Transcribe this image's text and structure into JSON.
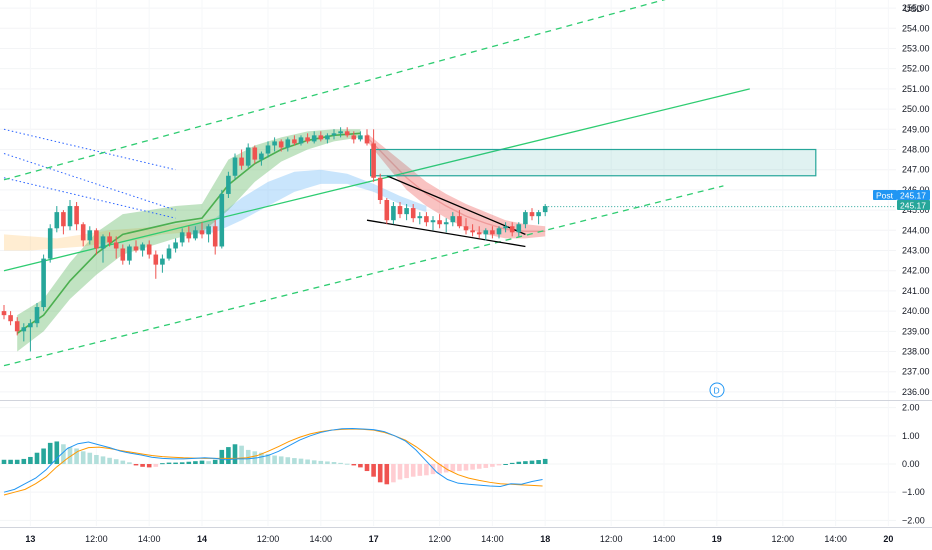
{
  "currency_label": "USD",
  "chart_data": [
    {
      "type": "candlestick",
      "title": "",
      "x_ticks": [
        "13",
        "12:00",
        "14:00",
        "14",
        "12:00",
        "14:00",
        "17",
        "12:00",
        "14:00",
        "18",
        "12:00",
        "14:00",
        "19",
        "12:00",
        "14:00",
        "20"
      ],
      "y_ticks": [
        "236.00",
        "237.00",
        "238.00",
        "239.00",
        "240.00",
        "241.00",
        "242.00",
        "243.00",
        "244.00",
        "245.00",
        "246.00",
        "247.00",
        "248.00",
        "249.00",
        "250.00",
        "251.00",
        "252.00",
        "253.00",
        "254.00",
        "255.00"
      ],
      "ylim": [
        235.6,
        255.4
      ],
      "last_price": 245.17,
      "last_price_label": "245.17",
      "post_price_label": "245.17",
      "post_label": "Post",
      "marker_label": "D",
      "colors": {
        "up": "#26a69a",
        "down": "#ef5350",
        "channel": "#2ecc71",
        "resistance_box": "#26a69a"
      },
      "ohlc": [
        [
          240.0,
          240.3,
          239.6,
          239.8
        ],
        [
          239.8,
          240.0,
          239.3,
          239.5
        ],
        [
          239.5,
          239.7,
          238.8,
          239.0
        ],
        [
          239.0,
          239.4,
          238.5,
          239.2
        ],
        [
          239.2,
          239.6,
          238.0,
          239.4
        ],
        [
          239.4,
          240.4,
          239.2,
          240.2
        ],
        [
          240.2,
          242.8,
          240.0,
          242.6
        ],
        [
          242.6,
          244.3,
          242.4,
          244.1
        ],
        [
          244.1,
          245.2,
          243.9,
          244.9
        ],
        [
          244.9,
          245.0,
          243.8,
          244.2
        ],
        [
          244.2,
          245.5,
          244.0,
          245.2
        ],
        [
          245.2,
          245.4,
          244.0,
          244.3
        ],
        [
          244.3,
          244.4,
          243.2,
          243.5
        ],
        [
          243.5,
          244.2,
          243.3,
          244.0
        ],
        [
          244.0,
          244.1,
          242.8,
          243.1
        ],
        [
          243.1,
          243.8,
          242.4,
          243.7
        ],
        [
          243.7,
          243.9,
          243.2,
          243.4
        ],
        [
          243.4,
          243.7,
          242.6,
          243.1
        ],
        [
          243.1,
          243.3,
          242.3,
          242.5
        ],
        [
          242.5,
          243.3,
          242.3,
          243.2
        ],
        [
          243.2,
          243.5,
          242.9,
          243.0
        ],
        [
          243.0,
          243.4,
          242.7,
          243.3
        ],
        [
          243.3,
          243.5,
          242.6,
          242.8
        ],
        [
          242.8,
          243.0,
          241.6,
          242.3
        ],
        [
          242.3,
          242.8,
          241.9,
          242.6
        ],
        [
          242.6,
          243.3,
          242.5,
          243.1
        ],
        [
          243.1,
          243.6,
          242.9,
          243.4
        ],
        [
          243.4,
          244.1,
          243.2,
          243.9
        ],
        [
          243.9,
          244.2,
          243.4,
          243.6
        ],
        [
          243.6,
          244.2,
          243.5,
          244.0
        ],
        [
          244.0,
          244.4,
          243.6,
          243.8
        ],
        [
          243.8,
          244.3,
          243.4,
          244.2
        ],
        [
          244.2,
          244.5,
          242.8,
          243.2
        ],
        [
          243.2,
          246.0,
          243.1,
          245.8
        ],
        [
          245.8,
          246.9,
          245.6,
          246.7
        ],
        [
          246.7,
          247.8,
          246.5,
          247.6
        ],
        [
          247.6,
          248.0,
          247.0,
          247.2
        ],
        [
          247.2,
          248.3,
          247.1,
          248.1
        ],
        [
          248.1,
          248.2,
          247.3,
          247.5
        ],
        [
          247.5,
          247.9,
          247.2,
          247.8
        ],
        [
          247.8,
          248.4,
          247.6,
          248.2
        ],
        [
          248.2,
          248.6,
          247.9,
          248.4
        ],
        [
          248.4,
          248.5,
          247.9,
          248.1
        ],
        [
          248.1,
          248.6,
          247.9,
          248.5
        ],
        [
          248.5,
          248.7,
          248.2,
          248.3
        ],
        [
          248.3,
          248.7,
          248.2,
          248.6
        ],
        [
          248.6,
          248.8,
          248.3,
          248.4
        ],
        [
          248.4,
          248.9,
          248.3,
          248.7
        ],
        [
          248.7,
          248.9,
          248.4,
          248.5
        ],
        [
          248.5,
          248.8,
          248.3,
          248.7
        ],
        [
          248.7,
          249.0,
          248.5,
          248.8
        ],
        [
          248.8,
          249.1,
          248.6,
          248.9
        ],
        [
          248.9,
          249.1,
          248.6,
          248.7
        ],
        [
          248.7,
          248.9,
          248.3,
          248.5
        ],
        [
          248.5,
          248.9,
          248.4,
          248.7
        ],
        [
          248.7,
          249.0,
          248.2,
          248.3
        ],
        [
          248.3,
          249.0,
          246.4,
          246.6
        ],
        [
          246.6,
          246.8,
          245.3,
          245.5
        ],
        [
          245.5,
          245.6,
          244.3,
          244.5
        ],
        [
          244.5,
          245.4,
          244.3,
          245.2
        ],
        [
          245.2,
          245.4,
          244.6,
          244.8
        ],
        [
          244.8,
          245.3,
          244.5,
          245.1
        ],
        [
          245.1,
          245.3,
          244.4,
          244.6
        ],
        [
          244.6,
          244.9,
          244.3,
          244.7
        ],
        [
          244.7,
          244.9,
          244.2,
          244.4
        ],
        [
          244.4,
          244.7,
          244.0,
          244.5
        ],
        [
          244.5,
          244.8,
          244.1,
          244.3
        ],
        [
          244.3,
          244.6,
          243.9,
          244.4
        ],
        [
          244.4,
          244.9,
          244.2,
          244.7
        ],
        [
          244.7,
          245.0,
          244.1,
          244.2
        ],
        [
          244.2,
          244.6,
          243.8,
          244.0
        ],
        [
          244.0,
          244.3,
          243.7,
          243.9
        ],
        [
          243.9,
          244.2,
          243.6,
          243.8
        ],
        [
          243.8,
          244.1,
          243.5,
          244.0
        ],
        [
          244.0,
          244.2,
          243.6,
          243.8
        ],
        [
          243.8,
          244.2,
          243.6,
          244.1
        ],
        [
          244.1,
          244.4,
          243.9,
          244.2
        ],
        [
          244.2,
          244.4,
          243.7,
          243.9
        ],
        [
          243.9,
          244.4,
          243.7,
          244.3
        ],
        [
          244.3,
          245.0,
          244.1,
          244.9
        ],
        [
          244.9,
          245.1,
          244.5,
          244.7
        ],
        [
          244.7,
          245.0,
          244.3,
          244.9
        ],
        [
          244.9,
          245.3,
          244.7,
          245.2
        ]
      ],
      "ribbon_green_upper": [
        239.8,
        240.6,
        242.4,
        243.9,
        244.8,
        245.0,
        245.2,
        245.3,
        247.5,
        248.2,
        248.6,
        248.9,
        249.0,
        249.0
      ],
      "ribbon_green_lower": [
        238.0,
        239.0,
        240.6,
        241.8,
        242.8,
        243.2,
        243.6,
        243.9,
        245.0,
        246.4,
        247.4,
        248.0,
        248.4,
        248.6
      ],
      "ribbon_red_upper": [
        248.8,
        248.0,
        247.2,
        246.4,
        245.8,
        245.3,
        244.9,
        244.5,
        244.3,
        244.2
      ],
      "ribbon_red_lower": [
        248.4,
        247.2,
        246.0,
        245.2,
        244.6,
        244.1,
        243.8,
        243.6,
        243.6,
        243.7
      ],
      "ribbon_blue_upper": [
        244.2,
        244.6,
        245.6,
        246.4,
        246.9,
        247.0,
        246.8,
        246.3,
        245.7,
        245.2
      ],
      "ribbon_blue_lower": [
        243.8,
        243.9,
        244.5,
        245.2,
        245.9,
        246.3,
        246.3,
        245.9,
        245.3,
        244.9
      ],
      "channel_upper_dashed": [
        [
          0,
          246.5
        ],
        [
          101,
          255.5
        ]
      ],
      "channel_mid_solid": [
        [
          0,
          242.0
        ],
        [
          113,
          251.0
        ]
      ],
      "channel_lower_dashed": [
        [
          0,
          237.3
        ],
        [
          109,
          246.2
        ]
      ],
      "wedge_upper": [
        [
          58,
          246.7
        ],
        [
          79,
          243.8
        ]
      ],
      "wedge_lower": [
        [
          55,
          244.5
        ],
        [
          79,
          243.2
        ]
      ],
      "blue_dotted_lines": [
        [
          [
            0,
            249.0
          ],
          [
            26,
            247.0
          ]
        ],
        [
          [
            0,
            247.8
          ],
          [
            26,
            245.0
          ]
        ],
        [
          [
            0,
            246.6
          ],
          [
            26,
            244.6
          ]
        ]
      ],
      "resistance_box": {
        "x_start": 56,
        "x_end": 123,
        "y_low": 246.7,
        "y_high": 248.0
      }
    },
    {
      "type": "macd",
      "title": "",
      "y_ticks": [
        "2.00",
        "1.00",
        "0.00",
        "−1.00",
        "−2.00"
      ],
      "ylim": [
        -2.2,
        2.2
      ],
      "histogram": [
        0.15,
        0.15,
        0.15,
        0.18,
        0.25,
        0.4,
        0.55,
        0.75,
        0.8,
        0.7,
        0.6,
        0.55,
        0.45,
        0.4,
        0.32,
        0.27,
        0.22,
        0.17,
        0.12,
        0.06,
        -0.05,
        -0.1,
        -0.12,
        -0.1,
        0.03,
        0.05,
        0.05,
        0.06,
        0.08,
        0.1,
        0.12,
        0.1,
        0.15,
        0.5,
        0.6,
        0.7,
        0.65,
        0.5,
        0.45,
        0.4,
        0.35,
        0.3,
        0.27,
        0.24,
        0.21,
        0.19,
        0.16,
        0.13,
        0.11,
        0.09,
        0.07,
        0.04,
        0.01,
        -0.05,
        -0.12,
        -0.25,
        -0.45,
        -0.65,
        -0.72,
        -0.65,
        -0.55,
        -0.5,
        -0.45,
        -0.42,
        -0.4,
        -0.36,
        -0.34,
        -0.3,
        -0.27,
        -0.25,
        -0.23,
        -0.2,
        -0.17,
        -0.14,
        -0.1,
        -0.05,
        0.0,
        0.04,
        0.08,
        0.1,
        0.12,
        0.14,
        0.18
      ],
      "macd_line": [
        -1.0,
        -0.9,
        -0.7,
        -0.5,
        -0.2,
        0.2,
        0.55,
        0.72,
        0.78,
        0.68,
        0.58,
        0.46,
        0.38,
        0.32,
        0.24,
        0.2,
        0.18,
        0.18,
        0.2,
        0.22,
        0.2,
        0.15,
        0.18,
        0.18,
        0.22,
        0.3,
        0.45,
        0.65,
        0.85,
        1.0,
        1.12,
        1.2,
        1.25,
        1.26,
        1.24,
        1.22,
        1.15,
        1.0,
        0.82,
        0.5,
        0.1,
        -0.3,
        -0.55,
        -0.68,
        -0.72,
        -0.75,
        -0.78,
        -0.8,
        -0.7,
        -0.72,
        -0.62,
        -0.55
      ],
      "signal_line": [
        -1.1,
        -1.0,
        -0.9,
        -0.7,
        -0.45,
        -0.1,
        0.2,
        0.45,
        0.58,
        0.6,
        0.55,
        0.48,
        0.42,
        0.36,
        0.3,
        0.26,
        0.24,
        0.22,
        0.21,
        0.2,
        0.2,
        0.2,
        0.2,
        0.22,
        0.3,
        0.45,
        0.62,
        0.8,
        0.95,
        1.07,
        1.15,
        1.2,
        1.23,
        1.24,
        1.23,
        1.2,
        1.12,
        1.0,
        0.85,
        0.62,
        0.35,
        0.05,
        -0.2,
        -0.38,
        -0.5,
        -0.58,
        -0.65,
        -0.7,
        -0.72,
        -0.74,
        -0.76,
        -0.78
      ]
    }
  ]
}
